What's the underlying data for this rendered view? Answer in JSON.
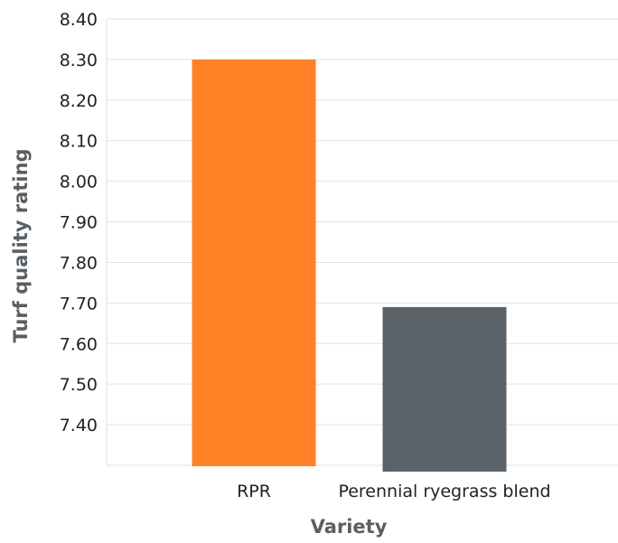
{
  "chart_data": {
    "type": "bar",
    "categories": [
      "RPR",
      "Perennial ryegrass blend"
    ],
    "values": [
      8.3,
      7.69
    ],
    "colors": [
      "#ff8025",
      "#5c6368"
    ],
    "xlabel": "Variety",
    "ylabel": "Turf quality rating",
    "ylim": [
      7.3,
      8.4
    ],
    "yticks": [
      "8.40",
      "8.30",
      "8.20",
      "8.10",
      "8.00",
      "7.90",
      "7.80",
      "7.70",
      "7.60",
      "7.50",
      "7.40"
    ],
    "grid": true,
    "legend": "none"
  }
}
